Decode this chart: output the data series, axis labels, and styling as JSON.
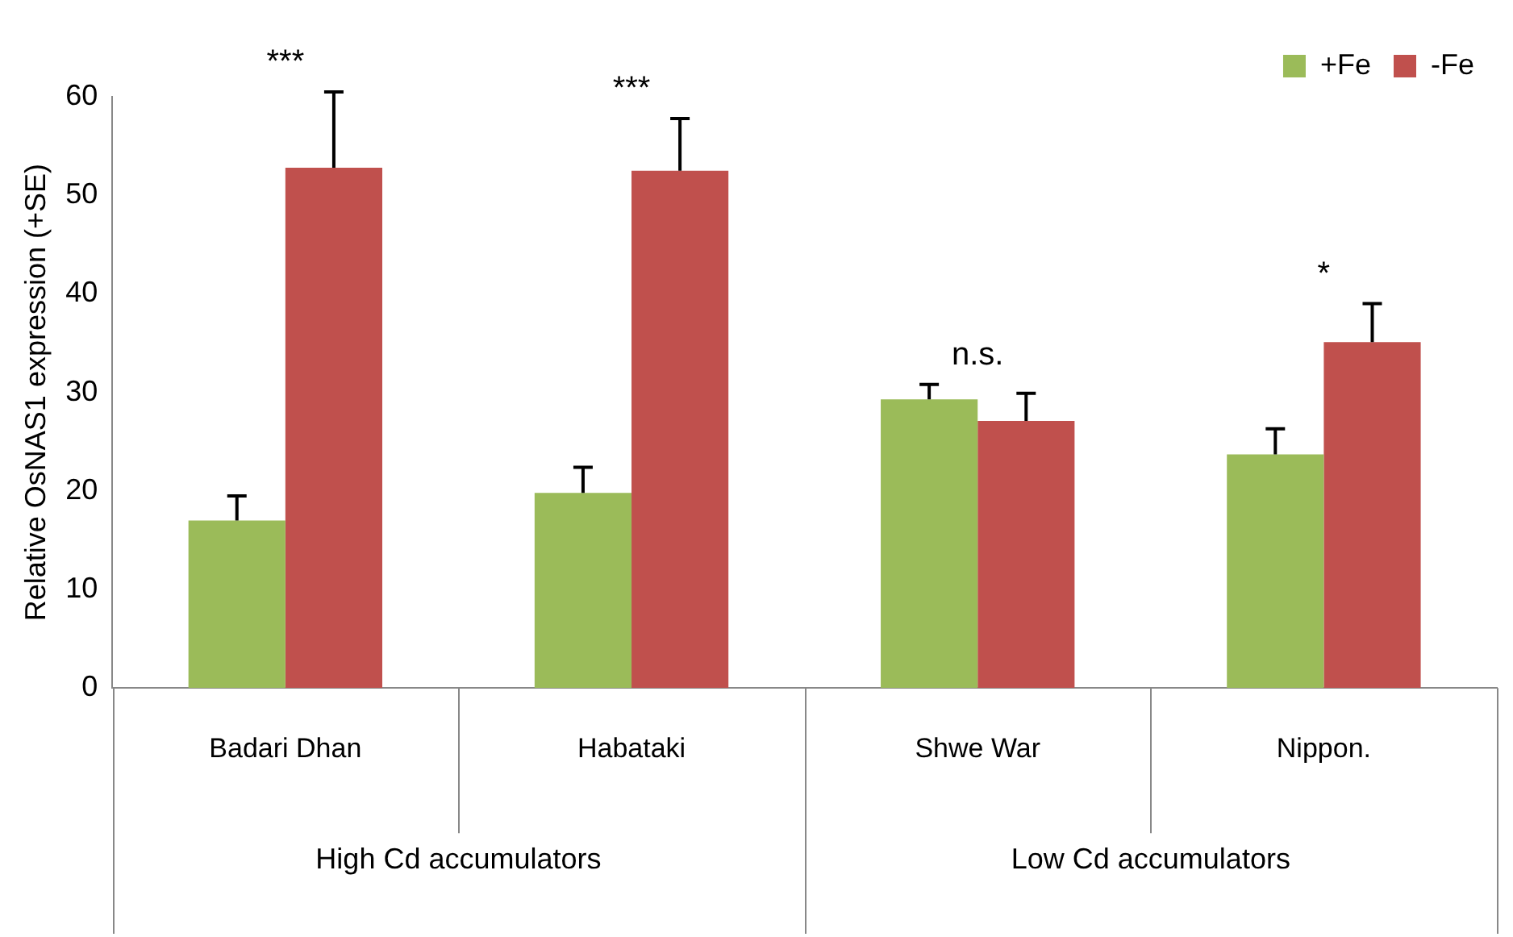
{
  "chart_data": {
    "type": "bar",
    "ylabel": "Relative OsNAS1 expression (+SE)",
    "categories": [
      "Badari Dhan",
      "Habataki",
      "Shwe War",
      "Nippon."
    ],
    "series": [
      {
        "name": "+Fe",
        "color": "#9bbb59",
        "values": [
          17.0,
          19.8,
          29.3,
          23.7
        ],
        "errors": [
          [
            17.0,
            19.5
          ],
          [
            19.8,
            22.4
          ],
          [
            29.3,
            30.8
          ],
          [
            23.7,
            26.3
          ]
        ]
      },
      {
        "name": "-Fe",
        "color": "#c0504d",
        "values": [
          52.8,
          52.5,
          27.1,
          35.1
        ],
        "errors": [
          [
            52.8,
            60.5
          ],
          [
            52.5,
            57.8
          ],
          [
            27.1,
            29.9
          ],
          [
            35.1,
            39.0
          ]
        ]
      }
    ],
    "ylim": [
      0,
      60
    ],
    "yticks": [
      0,
      10,
      20,
      30,
      40,
      50,
      60
    ],
    "grid": false,
    "legend": "top right",
    "annotations": [
      "***",
      "***",
      "n.s.",
      "*",
      "High Cd accumulators",
      "Low Cd accumulators"
    ]
  }
}
